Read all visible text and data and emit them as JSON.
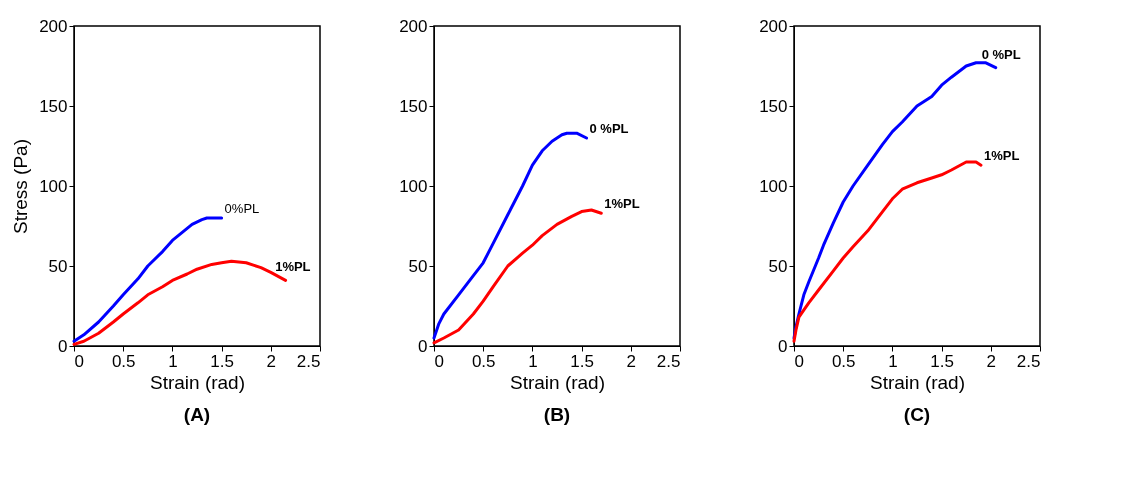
{
  "chart_data": [
    {
      "type": "line",
      "title": "(A)",
      "xlabel": "Strain (rad)",
      "ylabel": "Stress (Pa)",
      "xlim": [
        0,
        2.5
      ],
      "xticks": [
        0,
        0.5,
        1,
        1.5,
        2,
        2.5
      ],
      "ylim": [
        0,
        200
      ],
      "yticks": [
        0,
        50,
        100,
        150,
        200
      ],
      "grid": false,
      "marker": "none",
      "line_style": "solid",
      "series": [
        {
          "name": "0%PL",
          "color": "#0000ff",
          "x": [
            0,
            0.1,
            0.25,
            0.4,
            0.5,
            0.65,
            0.75,
            0.9,
            1.0,
            1.1,
            1.2,
            1.3,
            1.35,
            1.45,
            1.5
          ],
          "values": [
            3,
            7,
            15,
            25,
            32,
            42,
            50,
            59,
            66,
            71,
            76,
            79,
            80,
            80,
            80
          ]
        },
        {
          "name": "1%PL",
          "color": "#ff0000",
          "x": [
            0,
            0.1,
            0.25,
            0.4,
            0.5,
            0.65,
            0.75,
            0.9,
            1.0,
            1.15,
            1.25,
            1.4,
            1.5,
            1.6,
            1.75,
            1.9,
            2.0,
            2.15
          ],
          "values": [
            1,
            3,
            8,
            15,
            20,
            27,
            32,
            37,
            41,
            45,
            48,
            51,
            52,
            53,
            52,
            49,
            46,
            41
          ]
        }
      ]
    },
    {
      "type": "line",
      "title": "(B)",
      "xlabel": "Strain (rad)",
      "xlim": [
        0,
        2.5
      ],
      "xticks": [
        0,
        0.5,
        1,
        1.5,
        2,
        2.5
      ],
      "ylim": [
        0,
        200
      ],
      "yticks": [
        0,
        50,
        100,
        150,
        200
      ],
      "grid": false,
      "marker": "none",
      "line_style": "solid",
      "series": [
        {
          "name": "0 %PL",
          "color": "#0000ff",
          "x": [
            0,
            0.05,
            0.1,
            0.25,
            0.4,
            0.5,
            0.6,
            0.75,
            0.9,
            1.0,
            1.1,
            1.2,
            1.3,
            1.35,
            1.45,
            1.55
          ],
          "values": [
            5,
            14,
            20,
            32,
            44,
            52,
            64,
            82,
            100,
            113,
            122,
            128,
            132,
            133,
            133,
            130
          ]
        },
        {
          "name": "1%PL",
          "color": "#ff0000",
          "x": [
            0,
            0.1,
            0.25,
            0.4,
            0.5,
            0.6,
            0.75,
            0.9,
            1.0,
            1.1,
            1.25,
            1.4,
            1.5,
            1.6,
            1.7
          ],
          "values": [
            2,
            5,
            10,
            20,
            28,
            37,
            50,
            58,
            63,
            69,
            76,
            81,
            84,
            85,
            83
          ]
        }
      ]
    },
    {
      "type": "line",
      "title": "(C)",
      "xlabel": "Strain (rad)",
      "xlim": [
        0,
        2.5
      ],
      "xticks": [
        0,
        0.5,
        1,
        1.5,
        2,
        2.5
      ],
      "ylim": [
        0,
        200
      ],
      "yticks": [
        0,
        50,
        100,
        150,
        200
      ],
      "grid": false,
      "marker": "none",
      "line_style": "solid",
      "series": [
        {
          "name": "0 %PL",
          "color": "#0000ff",
          "x": [
            0,
            0.02,
            0.05,
            0.1,
            0.15,
            0.25,
            0.3,
            0.4,
            0.5,
            0.6,
            0.75,
            0.9,
            1.0,
            1.1,
            1.25,
            1.4,
            1.5,
            1.6,
            1.75,
            1.85,
            1.95,
            2.05
          ],
          "values": [
            5,
            12,
            20,
            32,
            40,
            55,
            63,
            77,
            90,
            100,
            113,
            126,
            134,
            140,
            150,
            156,
            163,
            168,
            175,
            177,
            177,
            174
          ]
        },
        {
          "name": "1%PL",
          "color": "#ff0000",
          "x": [
            0,
            0.02,
            0.05,
            0.15,
            0.25,
            0.4,
            0.5,
            0.6,
            0.75,
            0.9,
            1.0,
            1.1,
            1.25,
            1.4,
            1.5,
            1.6,
            1.75,
            1.85,
            1.9
          ],
          "values": [
            3,
            10,
            18,
            27,
            35,
            47,
            55,
            62,
            72,
            84,
            92,
            98,
            102,
            105,
            107,
            110,
            115,
            115,
            113
          ]
        }
      ]
    }
  ]
}
